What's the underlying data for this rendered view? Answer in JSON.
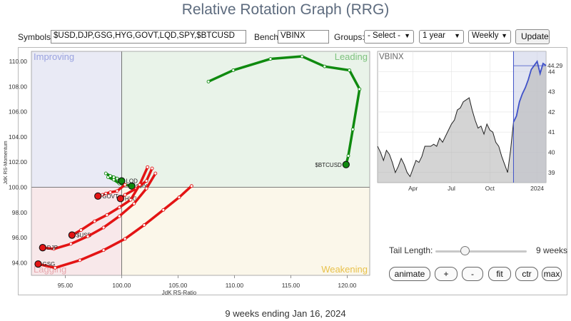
{
  "page_title": "Relative Rotation Graph (RRG)",
  "toolbar": {
    "symbols_label": "Symbols:",
    "symbols_value": "$USD,DJP,GSG,HYG,GOVT,LQD,SPY,$BTCUSD",
    "benchmark_label": "Benchmark:",
    "benchmark_value": "VBINX",
    "groups_label": "Groups:",
    "groups_selected": "- Select -",
    "period_selected": "1 year",
    "interval_selected": "Weekly",
    "update_label": "Update",
    "chevron_icon": "chevron-down-icon"
  },
  "rrg": {
    "quadrants": {
      "improving": "Improving",
      "leading": "Leading",
      "weakening": "Weakening",
      "lagging": "Lagging"
    },
    "colors": {
      "improving_bg": "#e9eaf5",
      "leading_bg": "#e9f3e9",
      "weakening_bg": "#fbf7ea",
      "lagging_bg": "#f8e8ea",
      "improving_text": "#9aa3e0",
      "leading_text": "#7ec27e",
      "weakening_text": "#e8c14a",
      "lagging_text": "#e6a7ad",
      "green_tail": "#0f8a0f",
      "red_tail": "#e31414"
    },
    "x_axis_label": "JdK RS-Ratio",
    "y_axis_label": "JdK RS-Momentum",
    "x_ticks": [
      "95.00",
      "100.00",
      "105.00",
      "110.00",
      "115.00",
      "120.00"
    ],
    "y_ticks": [
      "110.00",
      "108.00",
      "106.00",
      "104.00",
      "102.00",
      "100.00",
      "98.00",
      "96.00",
      "94.00"
    ]
  },
  "chart_data": [
    {
      "type": "scatter",
      "xlabel": "JdK RS-Ratio",
      "ylabel": "JdK RS-Momentum",
      "xlim": [
        92,
        122
      ],
      "ylim": [
        93,
        110.8
      ],
      "series": [
        {
          "name": "$BTCUSD",
          "color": "#0f8a0f",
          "x": [
            107.7,
            109.9,
            113.2,
            116.0,
            118.0,
            120.2,
            121.1,
            120.5,
            120.1,
            119.9
          ],
          "y": [
            108.4,
            109.3,
            110.2,
            110.4,
            109.6,
            109.3,
            107.8,
            104.6,
            102.5,
            101.8
          ]
        },
        {
          "name": "SPY",
          "color": "#0f8a0f",
          "x": [
            98.8,
            99.3,
            99.8,
            100.3,
            100.9
          ],
          "y": [
            100.8,
            100.6,
            100.3,
            100.2,
            100.1
          ]
        },
        {
          "name": "LQD",
          "color": "#0f8a0f",
          "x": [
            98.6,
            99.0,
            99.3,
            99.6,
            100.0
          ],
          "y": [
            101.1,
            100.9,
            100.8,
            100.7,
            100.5
          ]
        },
        {
          "name": "HYG",
          "color": "#e31414",
          "x": [
            102.7,
            102.2,
            101.3,
            100.3,
            99.9
          ],
          "y": [
            101.5,
            100.5,
            99.9,
            99.4,
            99.1
          ]
        },
        {
          "name": "GOVT",
          "color": "#e31414",
          "x": [
            100.3,
            99.6,
            99.0,
            98.6,
            98.3,
            97.9
          ],
          "y": [
            100.2,
            99.7,
            99.6,
            99.5,
            99.4,
            99.3
          ]
        },
        {
          "name": "$USD",
          "color": "#e31414",
          "x": [
            102.3,
            101.6,
            100.8,
            99.8,
            98.7,
            97.6,
            96.4,
            95.6
          ],
          "y": [
            101.6,
            100.2,
            99.0,
            98.4,
            97.8,
            97.3,
            96.6,
            96.2
          ]
        },
        {
          "name": "DJP",
          "color": "#e31414",
          "x": [
            103.0,
            102.2,
            101.1,
            99.8,
            98.4,
            97.0,
            95.5,
            94.0,
            93.0
          ],
          "y": [
            101.1,
            99.9,
            98.7,
            97.7,
            96.8,
            96.1,
            95.5,
            95.1,
            95.2
          ]
        },
        {
          "name": "GSG",
          "color": "#e31414",
          "x": [
            106.2,
            105.1,
            103.7,
            102.0,
            100.3,
            98.4,
            96.3,
            94.1,
            92.6
          ],
          "y": [
            100.1,
            99.2,
            98.2,
            97.0,
            95.9,
            95.0,
            94.2,
            93.6,
            93.9
          ]
        }
      ]
    },
    {
      "type": "area",
      "title": "VBINX",
      "x_ticks": [
        "Apr",
        "Jul",
        "Oct",
        "2024"
      ],
      "y_ticks": [
        "39",
        "40",
        "41",
        "42",
        "43",
        "44"
      ],
      "ylim": [
        38.5,
        45.0
      ],
      "last_value": "44.29",
      "values": [
        40.3,
        40.0,
        39.6,
        40.1,
        39.9,
        39.5,
        39.0,
        39.3,
        39.7,
        39.4,
        39.0,
        38.8,
        39.2,
        39.6,
        39.5,
        39.8,
        40.3,
        40.3,
        40.3,
        40.4,
        40.3,
        40.7,
        40.5,
        40.8,
        41.1,
        41.4,
        41.6,
        42.1,
        42.2,
        42.5,
        42.6,
        42.7,
        42.1,
        41.6,
        41.2,
        41.3,
        40.9,
        41.4,
        41.1,
        41.0,
        40.5,
        40.3,
        39.8,
        39.4,
        39.0,
        40.1,
        41.5,
        41.8,
        42.5,
        42.9,
        43.2,
        43.6,
        44.1,
        44.3,
        44.5,
        43.9,
        44.4,
        44.3
      ],
      "highlight_start_index": 46
    }
  ],
  "controls": {
    "tail_length_label": "Tail Length:",
    "tail_length_value": "9 weeks",
    "tail_length_fraction": 0.32,
    "buttons": [
      "animate",
      "+",
      "-",
      "fit",
      "ctr",
      "max"
    ]
  },
  "footer": {
    "caption": "9 weeks ending Jan 16, 2024"
  }
}
